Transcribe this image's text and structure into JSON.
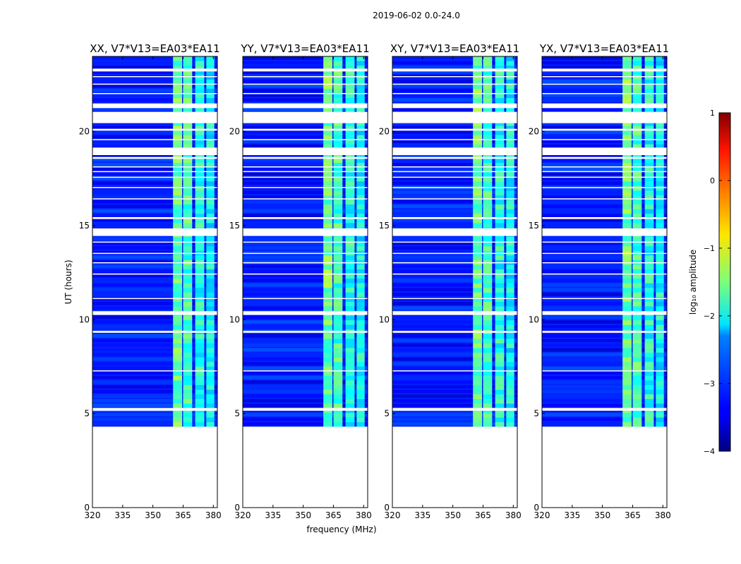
{
  "chart_data": {
    "type": "heatmap",
    "suptitle": "2019-06-02 0.0-24.0",
    "xlabel": "frequency (MHz)",
    "ylabel": "UT (hours)",
    "xlim": [
      320,
      382
    ],
    "ylim": [
      0,
      24
    ],
    "xticks": [
      "320",
      "335",
      "350",
      "365",
      "380"
    ],
    "xtick_values": [
      320,
      335,
      350,
      365,
      380
    ],
    "yticks": [
      "0",
      "5",
      "10",
      "15",
      "20"
    ],
    "ytick_values": [
      0,
      5,
      10,
      15,
      20
    ],
    "data_start_hour": 4.3,
    "panels": [
      {
        "title": "XX, V7*V13=EA03*EA11"
      },
      {
        "title": "YY, V7*V13=EA03*EA11"
      },
      {
        "title": "XY, V7*V13=EA03*EA11"
      },
      {
        "title": "YX, V7*V13=EA03*EA11"
      }
    ],
    "background_log10_amplitude": -3.2,
    "bright_channels_mhz": [
      {
        "from": 360,
        "to": 364.5,
        "log10_amplitude": -1.6
      },
      {
        "from": 365,
        "to": 369.5,
        "log10_amplitude": -1.8
      },
      {
        "from": 371,
        "to": 375.5,
        "log10_amplitude": -2.0
      },
      {
        "from": 376.5,
        "to": 380.5,
        "log10_amplitude": -2.1
      }
    ],
    "flagged_time_hours": [
      [
        4.2,
        4.3
      ],
      [
        5.15,
        5.3
      ],
      [
        7.25,
        7.3
      ],
      [
        9.3,
        9.4
      ],
      [
        10.25,
        10.45
      ],
      [
        11.1,
        11.15
      ],
      [
        12.4,
        12.45
      ],
      [
        13.0,
        13.05
      ],
      [
        13.5,
        13.55
      ],
      [
        14.1,
        14.15
      ],
      [
        14.45,
        14.85
      ],
      [
        15.35,
        15.45
      ],
      [
        16.4,
        16.45
      ],
      [
        17.0,
        17.05
      ],
      [
        17.55,
        17.6
      ],
      [
        17.85,
        17.9
      ],
      [
        18.1,
        18.15
      ],
      [
        18.55,
        18.65
      ],
      [
        18.75,
        19.15
      ],
      [
        19.55,
        19.6
      ],
      [
        20.05,
        20.15
      ],
      [
        20.45,
        21.05
      ],
      [
        21.25,
        21.5
      ],
      [
        22.0,
        22.05
      ],
      [
        22.5,
        22.55
      ],
      [
        22.9,
        22.95
      ],
      [
        23.2,
        23.35
      ]
    ],
    "colorbar": {
      "label": "log₁₀ amplitude",
      "range": [
        -4,
        1
      ],
      "ticks": [
        "1",
        "0",
        "−1",
        "−2",
        "−3",
        "−4"
      ],
      "tick_values": [
        1,
        0,
        -1,
        -2,
        -3,
        -4
      ],
      "colormap": "jet"
    }
  }
}
